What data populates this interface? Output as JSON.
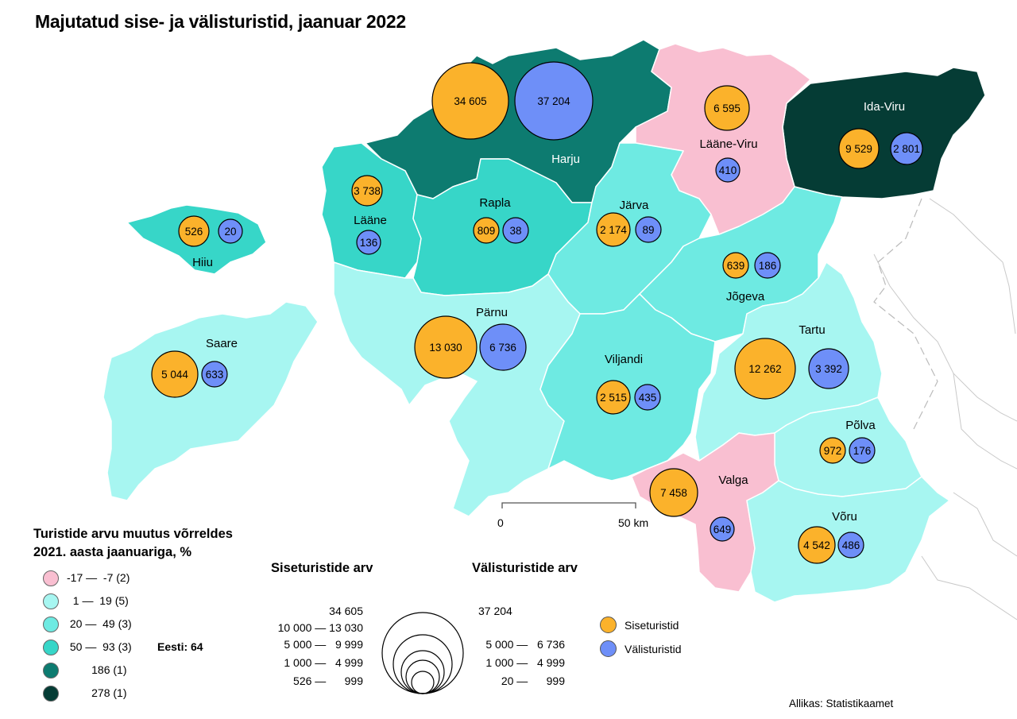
{
  "title": "Majutatud sise- ja välisturistid, jaanuar 2022",
  "colors": {
    "class_1": "#f9bfd1",
    "class_2": "#a7f6f1",
    "class_3": "#6eeae2",
    "class_4": "#37d6c8",
    "class_5": "#0d7b70",
    "class_6": "#053c35",
    "domestic": "#fbb22b",
    "foreign": "#6e8ff8"
  },
  "legend": {
    "title": "Turistide arvu muutus võrreldes 2021. aasta jaanuariga, %",
    "classes": [
      {
        "label": "-17 —  -7 (2)"
      },
      {
        "label": "  1 —  19 (5)"
      },
      {
        "label": " 20 —  49 (3)"
      },
      {
        "label": " 50 —  93 (3)"
      },
      {
        "label": "        186 (1)"
      },
      {
        "label": "        278 (1)"
      }
    ],
    "national": "Eesti: 64"
  },
  "size_legend": {
    "domestic_title": "Siseturistide arv",
    "foreign_title": "Välisturistide arv",
    "domestic_rows": [
      "34 605",
      "10 000 — 13 030",
      "5 000 —   9 999",
      "1 000 —   4 999",
      "526 —      999"
    ],
    "foreign_rows": [
      "37 204",
      "5 000 —   6 736",
      "1 000 —   4 999",
      "20 —      999"
    ]
  },
  "type_legend": {
    "domestic": "Siseturistid",
    "foreign": "Välisturistid"
  },
  "scale_bar": {
    "start": "0",
    "end": "50 km"
  },
  "source": "Allikas: Statistikaamet",
  "counties": [
    {
      "name": "Harju",
      "change_class": 5,
      "domestic": "34 605",
      "foreign": "37 204"
    },
    {
      "name": "Ida-Viru",
      "change_class": 6,
      "domestic": "9 529",
      "foreign": "2 801"
    },
    {
      "name": "Lääne-Viru",
      "change_class": 1,
      "domestic": "6 595",
      "foreign": "410"
    },
    {
      "name": "Lääne",
      "change_class": 4,
      "domestic": "3 738",
      "foreign": "136"
    },
    {
      "name": "Hiiu",
      "change_class": 4,
      "domestic": "526",
      "foreign": "20"
    },
    {
      "name": "Rapla",
      "change_class": 4,
      "domestic": "809",
      "foreign": "38"
    },
    {
      "name": "Järva",
      "change_class": 3,
      "domestic": "2 174",
      "foreign": "89"
    },
    {
      "name": "Jõgeva",
      "change_class": 3,
      "domestic": "639",
      "foreign": "186"
    },
    {
      "name": "Saare",
      "change_class": 2,
      "domestic": "5 044",
      "foreign": "633"
    },
    {
      "name": "Pärnu",
      "change_class": 2,
      "domestic": "13 030",
      "foreign": "6 736"
    },
    {
      "name": "Viljandi",
      "change_class": 3,
      "domestic": "2 515",
      "foreign": "435"
    },
    {
      "name": "Tartu",
      "change_class": 2,
      "domestic": "12 262",
      "foreign": "3 392"
    },
    {
      "name": "Põlva",
      "change_class": 2,
      "domestic": "972",
      "foreign": "176"
    },
    {
      "name": "Valga",
      "change_class": 1,
      "domestic": "7 458",
      "foreign": "649"
    },
    {
      "name": "Võru",
      "change_class": 2,
      "domestic": "4 542",
      "foreign": "486"
    }
  ]
}
